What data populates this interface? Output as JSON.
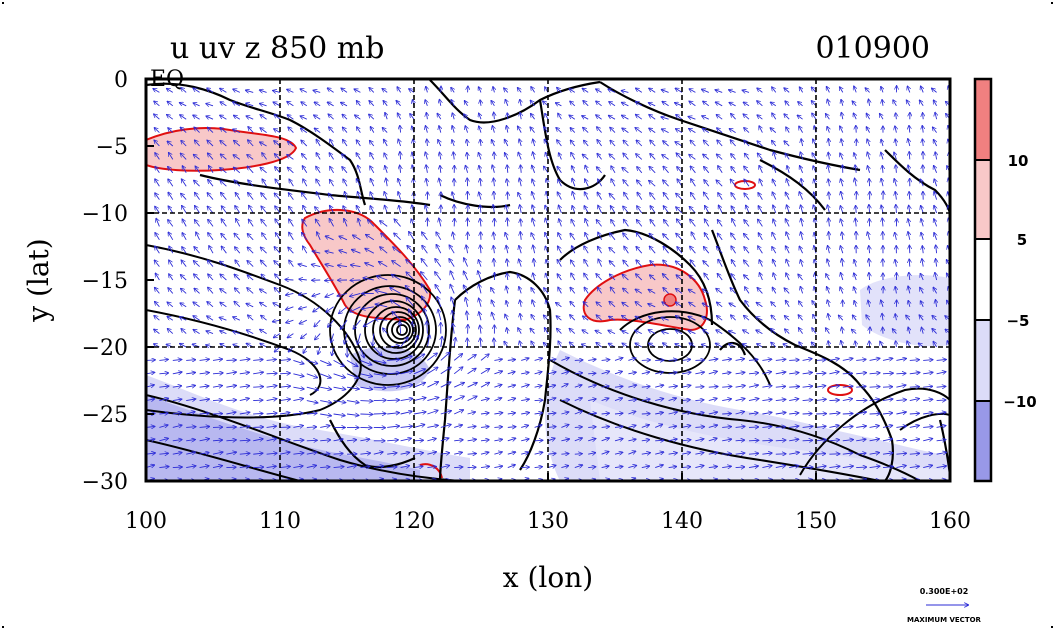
{
  "chart_data": {
    "type": "heatmap",
    "title_left": "u uv z 850 mb",
    "title_right": "010900",
    "xlabel": "x (lon)",
    "ylabel": "y (lat)",
    "xlim": [
      100,
      160
    ],
    "ylim": [
      -30,
      0
    ],
    "x_ticks": [
      "100",
      "110",
      "120",
      "130",
      "140",
      "150",
      "160"
    ],
    "y_ticks": [
      "0",
      "−5",
      "−10",
      "−15",
      "−20",
      "−25",
      "−30"
    ],
    "corner_label": "EQ",
    "colorbar": {
      "levels": [
        "10",
        "5",
        "−5",
        "−10"
      ],
      "colors": [
        "#f08080",
        "#f8c8c8",
        "#ffffff",
        "#dcdcf8",
        "#9898e8"
      ]
    },
    "vector_key": {
      "value_label": "0.300E+02",
      "caption": "MAXIMUM VECTOR"
    },
    "grid": true,
    "cyclone_center": {
      "lon": 118,
      "lat": -19
    },
    "positive_regions": [
      {
        "lon": [
          100,
          111
        ],
        "lat": [
          -3.5,
          -7
        ]
      },
      {
        "lon": [
          112,
          121
        ],
        "lat": [
          -9,
          -19
        ]
      },
      {
        "lon": [
          132,
          142
        ],
        "lat": [
          -14,
          -18
        ]
      }
    ],
    "negative_regions": [
      {
        "lon": [
          100,
          160
        ],
        "lat": [
          -21,
          -30
        ]
      },
      {
        "lon": [
          153,
          160
        ],
        "lat": [
          -15,
          -20
        ]
      }
    ]
  }
}
